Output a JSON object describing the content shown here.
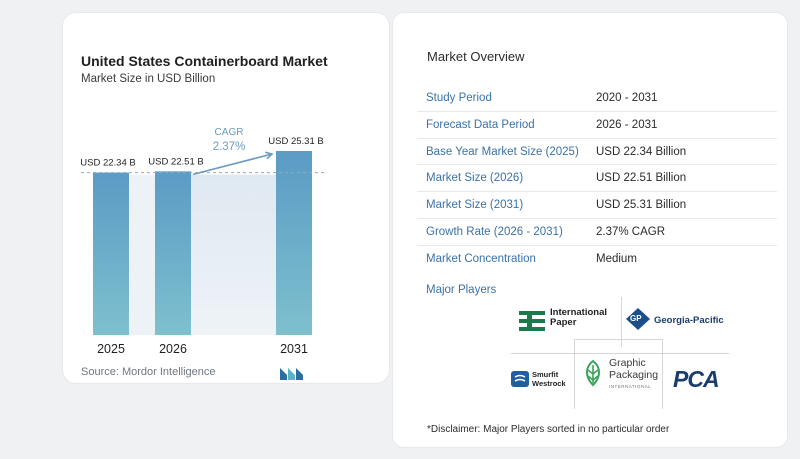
{
  "chart_data": {
    "type": "bar",
    "title": "United States Containerboard Market",
    "subtitle": "Market Size in USD Billion",
    "categories": [
      "2025",
      "2026",
      "2031"
    ],
    "values": [
      22.34,
      22.51,
      25.31
    ],
    "value_labels": [
      "USD 22.34 B",
      "USD 22.51 B",
      "USD 25.31 B"
    ],
    "annotation": {
      "label": "CAGR",
      "value": "2.37%"
    },
    "source": "Source: Mordor Intelligence",
    "grid": false,
    "legend": "none",
    "colors": {
      "bar_top": "#5b9bc5",
      "bar_bottom": "#7ec0ce",
      "band": "#dbe7f0",
      "arrow": "#6b9cc0",
      "reference_line": "#9aa8b4"
    }
  },
  "overview": {
    "title": "Market Overview",
    "rows": [
      {
        "label": "Study Period",
        "value": "2020 - 2031"
      },
      {
        "label": "Forecast Data Period",
        "value": "2026 - 2031"
      },
      {
        "label": "Base Year Market Size (2025)",
        "value": "USD 22.34 Billion"
      },
      {
        "label": "Market Size (2026)",
        "value": "USD 22.51 Billion"
      },
      {
        "label": "Market Size (2031)",
        "value": "USD 25.31 Billion"
      },
      {
        "label": "Growth Rate (2026 - 2031)",
        "value": "2.37% CAGR"
      },
      {
        "label": "Market Concentration",
        "value": "Medium"
      }
    ]
  },
  "players": {
    "title": "Major Players",
    "logos": {
      "international_paper": [
        "International",
        "Paper"
      ],
      "georgia_pacific": "Georgia-Pacific",
      "georgia_pacific_mark": "GP",
      "smurfit_westrock": [
        "Smurfit",
        "Westrock"
      ],
      "graphic_packaging": [
        "Graphic",
        "Packaging",
        "INTERNATIONAL"
      ],
      "pca": "PCA"
    }
  },
  "disclaimer": "*Disclaimer: Major Players sorted in no particular order"
}
